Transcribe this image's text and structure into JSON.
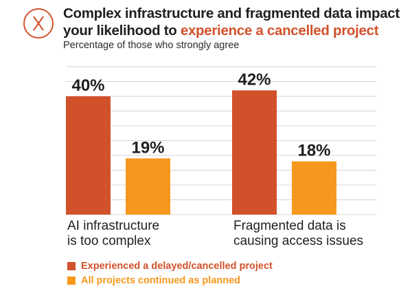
{
  "header": {
    "title_part1": "Complex infrastructure and fragmented data impact",
    "title_part2": "your likelihood to ",
    "title_highlight": "experience a cancelled project",
    "subtitle": "Percentage of those who strongly agree",
    "icon": "x-circle-icon"
  },
  "colors": {
    "accent": "#d1512b",
    "series1": "#d1512b",
    "series2": "#f7981e",
    "text": "#1f1f1f",
    "grid": "#d4d4d4"
  },
  "chart_data": {
    "type": "bar",
    "categories": [
      [
        "AI infrastructure",
        "is too complex"
      ],
      [
        "Fragmented data is",
        "causing access issues"
      ]
    ],
    "series": [
      {
        "name": "Experienced a delayed/cancelled project",
        "values": [
          40,
          42
        ],
        "labels": [
          "40%",
          "42%"
        ]
      },
      {
        "name": "All projects continued as planned",
        "values": [
          19,
          18
        ],
        "labels": [
          "19%",
          "18%"
        ]
      }
    ],
    "ylim": [
      0,
      50
    ],
    "grid": true,
    "legend_position": "bottom-left",
    "title": "Complex infrastructure and fragmented data impact your likelihood to experience a cancelled project",
    "subtitle": "Percentage of those who strongly agree"
  }
}
